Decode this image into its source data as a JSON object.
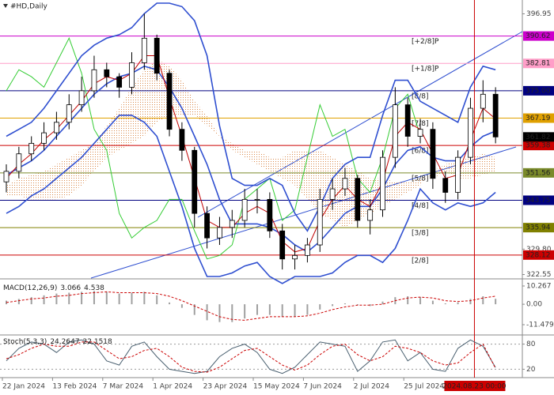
{
  "chart_data": [
    {
      "type": "candlestick",
      "title": "#HD,Daily",
      "categories": [
        "22 Jan 2024",
        null,
        null,
        null,
        "13 Feb 2024",
        null,
        null,
        null,
        "7 Mar 2024",
        null,
        null,
        null,
        "1 Apr 2024",
        null,
        null,
        null,
        "23 Apr 2024",
        null,
        null,
        null,
        "15 May 2024",
        null,
        null,
        null,
        "7 Jun 2024",
        null,
        null,
        null,
        "2 Jul 2024",
        null,
        null,
        null,
        "25 Jul 2024",
        null,
        null,
        null,
        null,
        "2024.08.23 00:00",
        null,
        null
      ],
      "open": [
        349,
        352,
        357,
        360,
        363,
        366,
        371,
        375,
        381,
        379,
        376,
        383,
        390,
        380,
        364,
        358,
        340,
        333,
        336,
        338,
        344,
        344,
        335,
        327,
        328,
        331,
        344,
        347,
        350,
        338,
        341,
        356,
        371,
        362,
        364,
        350,
        346,
        356,
        370,
        374
      ],
      "high": [
        354,
        359,
        362,
        366,
        369,
        374,
        379,
        385,
        383,
        380,
        386,
        397,
        391,
        381,
        366,
        359,
        342,
        339,
        341,
        347,
        347,
        346,
        337,
        331,
        333,
        347,
        350,
        353,
        351,
        344,
        358,
        376,
        373,
        367,
        366,
        352,
        358,
        373,
        378,
        376
      ],
      "low": [
        346,
        350,
        355,
        358,
        361,
        364,
        369,
        373,
        376,
        373,
        374,
        381,
        378,
        362,
        355,
        336,
        330,
        331,
        333,
        336,
        340,
        333,
        324,
        324,
        326,
        329,
        341,
        345,
        336,
        334,
        339,
        353,
        359,
        360,
        347,
        343,
        344,
        354,
        366,
        360
      ],
      "close": [
        352,
        357,
        360,
        363,
        366,
        371,
        375,
        381,
        379,
        376,
        383,
        390,
        380,
        364,
        358,
        340,
        333,
        336,
        338,
        344,
        344,
        335,
        327,
        328,
        331,
        344,
        347,
        350,
        338,
        341,
        356,
        371,
        362,
        364,
        350,
        346,
        356,
        370,
        374,
        361.82
      ],
      "ylim": [
        321.54,
        400.9
      ],
      "yticks": [
        396.95,
        {
          "value": 329.8,
          "label": "329.80"
        },
        322.55
      ],
      "last_price": 361.82,
      "bollinger": {
        "color": "#2f4fd0",
        "upper": [
          362,
          364,
          366,
          370,
          375,
          380,
          385,
          388,
          390,
          391,
          393,
          397,
          400,
          400,
          399,
          395,
          385,
          365,
          350,
          348,
          348,
          350,
          348,
          340,
          335,
          342,
          350,
          354,
          356,
          356,
          368,
          378,
          378,
          372,
          370,
          368,
          366,
          376,
          382,
          381
        ],
        "middle": [
          351,
          353,
          355,
          358,
          362,
          366,
          370,
          374,
          377,
          379,
          380,
          382,
          381,
          376,
          370,
          362,
          354,
          344,
          337,
          337,
          337,
          336,
          334,
          331,
          329,
          332,
          336,
          340,
          342,
          342,
          347,
          354,
          358,
          359,
          356,
          355,
          355,
          359,
          362,
          363.5
        ],
        "lower": [
          340,
          342,
          345,
          347,
          350,
          353,
          356,
          360,
          364,
          368,
          368,
          366,
          362,
          352,
          342,
          330,
          322,
          322,
          323,
          325,
          326,
          322,
          320,
          322,
          322,
          322,
          323,
          326,
          328,
          328,
          326,
          330,
          338,
          347,
          343,
          341,
          343,
          342,
          343,
          346
        ]
      },
      "ma": {
        "color": "#c00000",
        "values": [
          350,
          354,
          357,
          361,
          364,
          368,
          372,
          377,
          379,
          378,
          380,
          385,
          385,
          373,
          362,
          350,
          338,
          336,
          336,
          340,
          342,
          340,
          332,
          329,
          330,
          338,
          344,
          348,
          344,
          342,
          349,
          362,
          366,
          364,
          357,
          350,
          351,
          361,
          370,
          367
        ]
      },
      "lagging": {
        "color": "#33cc33",
        "values": [
          375,
          381,
          379,
          376,
          383,
          390,
          380,
          364,
          358,
          340,
          333,
          336,
          338,
          344,
          344,
          335,
          327,
          328,
          331,
          344,
          347,
          350,
          338,
          341,
          356,
          371,
          362,
          364,
          350,
          346,
          356,
          370,
          374,
          362,
          null,
          null,
          null,
          null,
          null,
          null
        ]
      },
      "cloud": {
        "color": "#d9884a",
        "span_a": [
          348,
          350,
          351,
          352,
          354,
          356,
          358,
          360,
          365,
          370,
          376,
          381,
          384,
          382,
          378,
          372,
          368,
          362,
          358,
          356,
          354,
          352,
          350,
          348,
          344,
          340,
          338,
          336,
          338,
          340,
          342,
          344,
          346,
          348,
          352,
          354,
          355,
          356,
          357,
          356
        ],
        "span_b": [
          345,
          345,
          344,
          344,
          344,
          345,
          348,
          352,
          356,
          358,
          360,
          362,
          366,
          368,
          368,
          368,
          365,
          362,
          360,
          358,
          358,
          356,
          356,
          358,
          358,
          358,
          356,
          354,
          352,
          350,
          350,
          349,
          349,
          350,
          350,
          352,
          350,
          350,
          351,
          352
        ]
      },
      "levels": [
        {
          "name": "[+2/8]P",
          "value": 390.62,
          "color": "#cc00cc"
        },
        {
          "name": "[+1/8]P",
          "value": 382.81,
          "color": "#ff9ec8"
        },
        {
          "name": "[8/8]",
          "value": 375,
          "label": "375.00",
          "color": "#000080"
        },
        {
          "name": "[7/8]",
          "value": 367.19,
          "color": "#e0a000"
        },
        {
          "name": "[6/8]",
          "value": 359.38,
          "color": "#cc0000"
        },
        {
          "name": "[5/8]",
          "value": 351.56,
          "color": "#7a8a2a"
        },
        {
          "name": "[4/8]",
          "value": 343.75,
          "color": "#000080"
        },
        {
          "name": "[3/8]",
          "value": 335.94,
          "color": "#808000"
        },
        {
          "name": "[2/8]",
          "value": 328.12,
          "color": "#cc0000"
        }
      ],
      "crosshair_color": "#cc0000"
    },
    {
      "type": "macd",
      "title": "MACD(12,26,9)",
      "series": [
        {
          "color": "#a0a0a0",
          "values": [
            2,
            3,
            4,
            5,
            6,
            6.5,
            7,
            7.5,
            7,
            6,
            6.5,
            7,
            5,
            1,
            -2,
            -6,
            -9,
            -10,
            -10,
            -8,
            -6,
            -6,
            -7,
            -7,
            -6,
            -3,
            -1,
            0.5,
            -0.5,
            -1,
            1.5,
            4,
            4.5,
            4,
            2,
            0.5,
            1,
            3,
            4.5,
            3.066
          ]
        },
        {
          "color": "#cc0000",
          "values": [
            1,
            2,
            3,
            3.5,
            4.5,
            5,
            6,
            6.5,
            7,
            6.5,
            6.5,
            6.5,
            6,
            4.5,
            2,
            -1,
            -4,
            -7,
            -8.5,
            -9,
            -8,
            -7,
            -7,
            -7,
            -6.5,
            -5,
            -3,
            -1.5,
            -0.5,
            -0.5,
            0,
            2,
            3.5,
            4,
            3.5,
            2,
            1.5,
            2,
            3.5,
            4.538
          ]
        }
      ],
      "ylim": [
        -16.81,
        13.37
      ],
      "yticks": [
        10.267,
        {
          "value": 0,
          "label": "0.00"
        },
        -11.479
      ]
    },
    {
      "type": "stoch",
      "title": "Stoch(5,3,3)",
      "series": [
        {
          "color": "#4a6070",
          "values": [
            40,
            70,
            85,
            80,
            60,
            85,
            90,
            80,
            40,
            30,
            75,
            85,
            50,
            20,
            15,
            10,
            15,
            50,
            70,
            80,
            60,
            20,
            10,
            25,
            55,
            85,
            80,
            75,
            15,
            40,
            85,
            90,
            40,
            60,
            20,
            15,
            70,
            90,
            75,
            24.2647
          ]
        },
        {
          "color": "#cc0000",
          "values": [
            45,
            55,
            70,
            80,
            75,
            75,
            85,
            85,
            65,
            45,
            50,
            65,
            70,
            50,
            25,
            15,
            13,
            25,
            45,
            65,
            70,
            50,
            30,
            18,
            30,
            55,
            75,
            80,
            55,
            40,
            50,
            75,
            70,
            60,
            40,
            30,
            35,
            60,
            80,
            22.1518
          ]
        }
      ],
      "ylim": [
        0,
        100
      ],
      "yticks": [
        80,
        20
      ]
    }
  ]
}
